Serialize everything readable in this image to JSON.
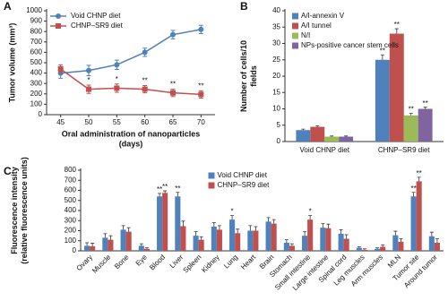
{
  "chart_data": [
    {
      "type": "line",
      "label": "A",
      "ylabel": [
        "Tumor volume (mm³)"
      ],
      "xlabel": [
        "Oral administration of nanoparticles",
        "(days)"
      ],
      "x": [
        45,
        50,
        55,
        60,
        65,
        70
      ],
      "xlim": [
        42.5,
        72.5
      ],
      "xticks": [
        45,
        50,
        55,
        60,
        65,
        70
      ],
      "ylim": [
        0,
        1000
      ],
      "yticks": [
        0,
        100,
        200,
        300,
        400,
        500,
        600,
        700,
        800,
        900,
        1000
      ],
      "legend": "upper left",
      "series": [
        {
          "name": "Void CHNP diet",
          "color": "#4f81bd",
          "marker": "circle",
          "values": [
            400,
            425,
            480,
            600,
            770,
            820
          ],
          "errors": [
            50,
            50,
            45,
            40,
            40,
            40
          ]
        },
        {
          "name": "CHNP–SR9 diet",
          "color": "#c0504d",
          "marker": "square",
          "values": [
            440,
            245,
            255,
            245,
            210,
            195
          ],
          "errors": [
            40,
            40,
            40,
            35,
            35,
            35
          ]
        }
      ],
      "annotations": [
        {
          "x": 50,
          "series": 1,
          "text": "*"
        },
        {
          "x": 55,
          "series": 1,
          "text": "*"
        },
        {
          "x": 60,
          "series": 1,
          "text": "**"
        },
        {
          "x": 65,
          "series": 1,
          "text": "**"
        },
        {
          "x": 70,
          "series": 1,
          "text": "**"
        }
      ]
    },
    {
      "type": "bar",
      "label": "B",
      "ylabel": [
        "Number of cells/10",
        "fields"
      ],
      "categories": [
        "Void CHNP diet",
        "CHNP–SR9 diet"
      ],
      "ylim": [
        0,
        40
      ],
      "yticks": [
        0,
        5,
        10,
        15,
        20,
        25,
        30,
        35,
        40
      ],
      "legend": "upper left",
      "series": [
        {
          "name": "A/I-annexin V",
          "color": "#4f81bd",
          "values": [
            3.5,
            25
          ],
          "errors": [
            0.3,
            1.5
          ]
        },
        {
          "name": "A/I tunnel",
          "color": "#c0504d",
          "values": [
            4.5,
            33
          ],
          "errors": [
            0.3,
            1.5
          ]
        },
        {
          "name": "N/I",
          "color": "#9bbb59",
          "values": [
            1.5,
            8
          ],
          "errors": [
            0.2,
            0.6
          ]
        },
        {
          "name": "NPs-positive cancer stem cells",
          "color": "#8064a2",
          "values": [
            1.5,
            10
          ],
          "errors": [
            0.2,
            0.5
          ]
        }
      ],
      "annotations": [
        {
          "index": 1,
          "series": 0,
          "text": "**"
        },
        {
          "index": 1,
          "series": 1,
          "text": "**"
        },
        {
          "index": 1,
          "series": 2,
          "text": "**"
        },
        {
          "index": 1,
          "series": 3,
          "text": "**"
        }
      ]
    },
    {
      "type": "bar",
      "label": "C",
      "ylabel": [
        "Fluorescence intensity",
        "(relative fluorescence units)"
      ],
      "categories": [
        "Ovary",
        "Muscle",
        "Bone",
        "Eye",
        "Blood",
        "Liver",
        "Spleen",
        "Kidney",
        "Lung",
        "Heart",
        "Brain",
        "Stomach",
        "Small intestine",
        "Large intestine",
        "Spinal cord",
        "Leg muscles",
        "Arm muscles",
        "MLN",
        "Tumor site",
        "Around tumor"
      ],
      "ylim": [
        0,
        800
      ],
      "yticks": [
        0,
        100,
        200,
        300,
        400,
        500,
        600,
        700,
        800
      ],
      "legend": "upper center",
      "series": [
        {
          "name": "Void CHNP diet",
          "color": "#4f81bd",
          "values": [
            50,
            130,
            210,
            50,
            540,
            540,
            150,
            240,
            310,
            200,
            290,
            80,
            150,
            230,
            170,
            30,
            20,
            155,
            540,
            145
          ],
          "errors": [
            30,
            40,
            40,
            20,
            30,
            40,
            40,
            40,
            40,
            50,
            40,
            30,
            40,
            40,
            40,
            10,
            10,
            40,
            40,
            40
          ]
        },
        {
          "name": "CHNP–SR9 diet",
          "color": "#c0504d",
          "values": [
            45,
            110,
            190,
            20,
            575,
            245,
            110,
            210,
            175,
            200,
            270,
            50,
            310,
            225,
            120,
            10,
            40,
            90,
            690,
            80
          ],
          "errors": [
            30,
            40,
            40,
            10,
            20,
            50,
            30,
            40,
            40,
            40,
            40,
            20,
            40,
            40,
            40,
            10,
            20,
            30,
            40,
            40
          ]
        }
      ],
      "annotations": [
        {
          "index": 4,
          "series": 0,
          "text": "**"
        },
        {
          "index": 4,
          "series": 1,
          "text": "**"
        },
        {
          "index": 5,
          "series": 0,
          "text": "**"
        },
        {
          "index": 8,
          "series": 0,
          "text": "*"
        },
        {
          "index": 12,
          "series": 1,
          "text": "*"
        },
        {
          "index": 18,
          "series": 0,
          "text": "**"
        },
        {
          "index": 18,
          "series": 1,
          "text": "**"
        }
      ]
    }
  ]
}
